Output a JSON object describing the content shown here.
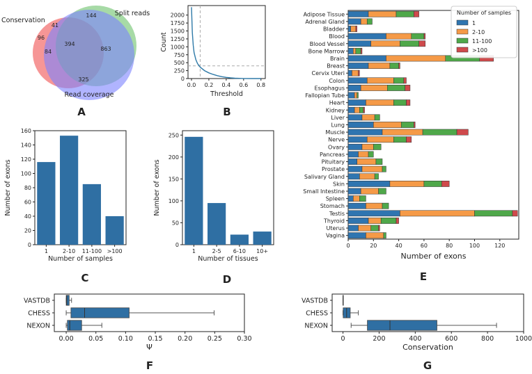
{
  "panel_labels": {
    "A": "A",
    "B": "B",
    "C": "C",
    "D": "D",
    "E": "E",
    "F": "F",
    "G": "G"
  },
  "colors": {
    "bar": "#2f6fa3",
    "one": "#2f75b0",
    "two_ten": "#f59a47",
    "eleven_hundred": "#4fa84a",
    "over_hundred": "#cf4a4c",
    "venn_red": "#f26d6d",
    "venn_green": "#6cc16b",
    "venn_blue": "#7b82ff"
  },
  "chart_data": [
    {
      "id": "A",
      "type": "venn",
      "sets": [
        "Conservation",
        "Split reads",
        "Read coverage"
      ],
      "regions": {
        "conservation_only": 96,
        "conservation_split": 41,
        "split_only": 144,
        "conservation_coverage": 84,
        "all_three": 394,
        "split_coverage": 863,
        "coverage_only": 325
      }
    },
    {
      "id": "B",
      "type": "line",
      "xlabel": "Threshold",
      "ylabel": "Count",
      "xlim": [
        -0.04,
        0.85
      ],
      "ylim": [
        0,
        2300
      ],
      "xticks": [
        "0.0",
        "0.2",
        "0.4",
        "0.6",
        "0.8"
      ],
      "yticks": [
        "0",
        "250",
        "500",
        "750",
        "1000",
        "1250",
        "1500",
        "1750",
        "2000"
      ],
      "x": [
        0.0,
        0.01,
        0.02,
        0.03,
        0.05,
        0.07,
        0.1,
        0.15,
        0.2,
        0.25,
        0.3,
        0.35,
        0.4,
        0.45,
        0.5,
        0.55,
        0.6,
        0.7,
        0.8
      ],
      "y": [
        2250,
        1450,
        1050,
        820,
        600,
        470,
        360,
        250,
        180,
        130,
        90,
        60,
        38,
        22,
        12,
        6,
        3,
        1,
        0
      ],
      "vline_x": 0.1,
      "hline_y": 400
    },
    {
      "id": "C",
      "type": "bar",
      "xlabel": "Number of samples",
      "ylabel": "Number of exons",
      "categories": [
        "1",
        "2-10",
        "11-100",
        ">100"
      ],
      "values": [
        116,
        153,
        85,
        40
      ],
      "ylim": [
        0,
        160
      ],
      "yticks": [
        "0",
        "20",
        "40",
        "60",
        "80",
        "100",
        "120",
        "140",
        "160"
      ]
    },
    {
      "id": "D",
      "type": "bar",
      "xlabel": "Number of tissues",
      "ylabel": "Number of exons",
      "categories": [
        "1",
        "2-5",
        "6-10",
        "10+"
      ],
      "values": [
        246,
        95,
        23,
        30
      ],
      "ylim": [
        0,
        260
      ],
      "yticks": [
        "0",
        "50",
        "100",
        "150",
        "200",
        "250"
      ]
    },
    {
      "id": "E",
      "type": "stacked_barh",
      "xlabel": "Number of exons",
      "legend_title": "Number of samples",
      "xlim": [
        0,
        135
      ],
      "xticks": [
        "0",
        "20",
        "40",
        "60",
        "80",
        "100",
        "120"
      ],
      "series_names": [
        "1",
        "2-10",
        "11-100",
        ">100"
      ],
      "tissues": [
        "Adipose Tissue",
        "Adrenal Gland",
        "Bladder",
        "Blood",
        "Blood Vessel",
        "Bone Marrow",
        "Brain",
        "Breast",
        "Cervix Uteri",
        "Colon",
        "Esophagus",
        "Fallopian Tube",
        "Heart",
        "Kidney",
        "Liver",
        "Lung",
        "Muscle",
        "Nerve",
        "Ovary",
        "Pancreas",
        "Pituitary",
        "Prostate",
        "Salivary Gland",
        "Skin",
        "Small Intestine",
        "Spleen",
        "Stomach",
        "Testis",
        "Thyroid",
        "Uterus",
        "Vagina"
      ],
      "values": [
        [
          16,
          22,
          14,
          4
        ],
        [
          10,
          5,
          4,
          0
        ],
        [
          2,
          4,
          0,
          1
        ],
        [
          30,
          20,
          10,
          1
        ],
        [
          18,
          23,
          15,
          5
        ],
        [
          4,
          2,
          4,
          1
        ],
        [
          30,
          47,
          27,
          11
        ],
        [
          16,
          17,
          7,
          1
        ],
        [
          3,
          5,
          0,
          1
        ],
        [
          15,
          21,
          8,
          2
        ],
        [
          10,
          21,
          14,
          4
        ],
        [
          5,
          2,
          1,
          0
        ],
        [
          14,
          22,
          10,
          3
        ],
        [
          5,
          4,
          3,
          1
        ],
        [
          11,
          10,
          4,
          0
        ],
        [
          20,
          22,
          10,
          1
        ],
        [
          27,
          32,
          27,
          9
        ],
        [
          15,
          21,
          10,
          4
        ],
        [
          11,
          9,
          6,
          0
        ],
        [
          8,
          8,
          4,
          0
        ],
        [
          7,
          15,
          5,
          0
        ],
        [
          11,
          16,
          3,
          0
        ],
        [
          9,
          12,
          3,
          0
        ],
        [
          33,
          27,
          14,
          6
        ],
        [
          10,
          14,
          6,
          0
        ],
        [
          4,
          5,
          5,
          0
        ],
        [
          14,
          13,
          5,
          0
        ],
        [
          41,
          59,
          30,
          4
        ],
        [
          16,
          10,
          12,
          2
        ],
        [
          8,
          10,
          6,
          1
        ],
        [
          14,
          14,
          2,
          0
        ]
      ]
    },
    {
      "id": "F",
      "type": "boxplot",
      "xlabel": "Ψ",
      "categories": [
        "VASTDB",
        "CHESS",
        "NEXON"
      ],
      "xlim": [
        -0.02,
        0.3
      ],
      "xticks": [
        "0.00",
        "0.05",
        "0.10",
        "0.15",
        "0.20",
        "0.25",
        "0.30"
      ],
      "boxes": [
        {
          "whislo": 0.0,
          "q1": 0.0,
          "med": 0.001,
          "q3": 0.005,
          "whishi": 0.009
        },
        {
          "whislo": 0.0,
          "q1": 0.008,
          "med": 0.031,
          "q3": 0.106,
          "whishi": 0.249
        },
        {
          "whislo": 0.0,
          "q1": 0.002,
          "med": 0.006,
          "q3": 0.026,
          "whishi": 0.06
        }
      ]
    },
    {
      "id": "G",
      "type": "boxplot",
      "xlabel": "Conservation",
      "categories": [
        "VASTDB",
        "CHESS",
        "NEXON"
      ],
      "xlim": [
        -60,
        1000
      ],
      "xticks": [
        "0",
        "200",
        "400",
        "600",
        "800",
        "1000"
      ],
      "boxes": [
        {
          "whislo": 0,
          "q1": 0,
          "med": 0,
          "q3": 0,
          "whishi": 0
        },
        {
          "whislo": 0,
          "q1": 1,
          "med": 20,
          "q3": 40,
          "whishi": 85
        },
        {
          "whislo": 45,
          "q1": 135,
          "med": 260,
          "q3": 520,
          "whishi": 850
        }
      ]
    }
  ]
}
